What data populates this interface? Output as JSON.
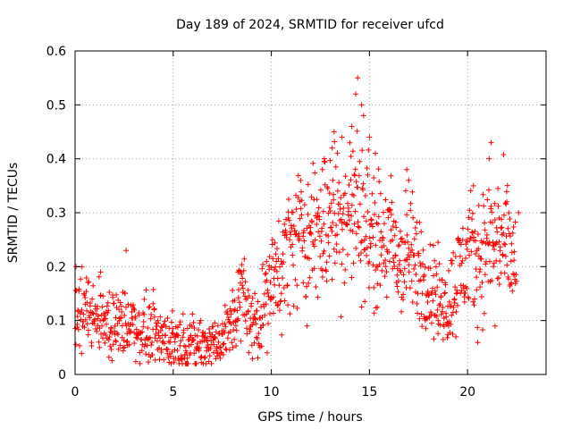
{
  "chart_data": {
    "type": "scatter",
    "title": "Day 189 of 2024, SRMTID for receiver ufcd",
    "xlabel": "GPS time / hours",
    "ylabel": "SRMTID / TECUs",
    "xlim": [
      0,
      24
    ],
    "ylim": [
      0,
      0.6
    ],
    "xticks": [
      0,
      5,
      10,
      15,
      20
    ],
    "yticks": [
      0,
      0.1,
      0.2,
      0.3,
      0.4,
      0.5,
      0.6
    ],
    "xtick_labels": [
      "0",
      "5",
      "10",
      "15",
      "20"
    ],
    "ytick_labels": [
      "0",
      "0.1",
      "0.2",
      "0.3",
      "0.4",
      "0.5",
      "0.6"
    ],
    "grid": true,
    "marker": "+",
    "color": "#ff0000",
    "series": [
      {
        "name": "SRMTID",
        "profile": {
          "x": [
            0,
            0.5,
            1,
            1.5,
            2,
            2.5,
            3,
            3.5,
            4,
            4.5,
            5,
            5.5,
            6,
            6.5,
            7,
            7.5,
            8,
            8.5,
            9,
            9.5,
            10,
            10.5,
            11,
            11.5,
            12,
            12.5,
            13,
            13.5,
            14,
            14.5,
            15,
            15.5,
            16,
            16.5,
            17,
            17.5,
            18,
            18.5,
            19,
            19.5,
            20,
            20.5,
            21,
            21.5,
            22,
            22.5
          ],
          "y": [
            0.12,
            0.11,
            0.11,
            0.1,
            0.09,
            0.1,
            0.09,
            0.08,
            0.08,
            0.07,
            0.06,
            0.06,
            0.055,
            0.055,
            0.06,
            0.06,
            0.1,
            0.15,
            0.09,
            0.12,
            0.16,
            0.2,
            0.24,
            0.26,
            0.25,
            0.27,
            0.3,
            0.28,
            0.31,
            0.3,
            0.27,
            0.24,
            0.25,
            0.21,
            0.22,
            0.2,
            0.17,
            0.14,
            0.13,
            0.18,
            0.22,
            0.21,
            0.24,
            0.25,
            0.23,
            0.2
          ]
        },
        "outliers": [
          {
            "x": 1.3,
            "y": 0.19
          },
          {
            "x": 2.6,
            "y": 0.23
          },
          {
            "x": 0.05,
            "y": 0.2
          },
          {
            "x": 8.3,
            "y": 0.19
          },
          {
            "x": 12.6,
            "y": 0.38
          },
          {
            "x": 12.7,
            "y": 0.4
          },
          {
            "x": 13.1,
            "y": 0.42
          },
          {
            "x": 13.2,
            "y": 0.45
          },
          {
            "x": 13.6,
            "y": 0.44
          },
          {
            "x": 14.1,
            "y": 0.46
          },
          {
            "x": 14.3,
            "y": 0.52
          },
          {
            "x": 14.4,
            "y": 0.55
          },
          {
            "x": 14.6,
            "y": 0.5
          },
          {
            "x": 14.7,
            "y": 0.48
          },
          {
            "x": 15.0,
            "y": 0.44
          },
          {
            "x": 15.3,
            "y": 0.41
          },
          {
            "x": 16.9,
            "y": 0.38
          },
          {
            "x": 17.0,
            "y": 0.36
          },
          {
            "x": 20.3,
            "y": 0.35
          },
          {
            "x": 21.1,
            "y": 0.4
          },
          {
            "x": 21.2,
            "y": 0.43
          },
          {
            "x": 21.6,
            "y": 0.29
          },
          {
            "x": 22.0,
            "y": 0.32
          },
          {
            "x": 22.6,
            "y": 0.3
          },
          {
            "x": 18.5,
            "y": 0.1
          },
          {
            "x": 19.0,
            "y": 0.095
          },
          {
            "x": 21.4,
            "y": 0.09
          }
        ]
      }
    ]
  }
}
